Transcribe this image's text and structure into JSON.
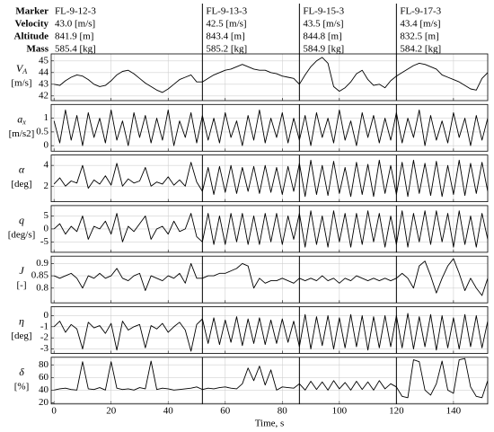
{
  "header": {
    "labels": [
      "Marker",
      "Velocity",
      "Altitude",
      "Mass"
    ],
    "segments": [
      {
        "marker": "FL-9-12-3",
        "velocity": "43.0 [m/s]",
        "altitude": "841.9 [m]",
        "mass": "585.4 [kg]"
      },
      {
        "marker": "FL-9-13-3",
        "velocity": "42.5 [m/s]",
        "altitude": "843.4 [m]",
        "mass": "585.2 [kg]"
      },
      {
        "marker": "FL-9-15-3",
        "velocity": "43.5 [m/s]",
        "altitude": "844.8 [m]",
        "mass": "584.9 [kg]"
      },
      {
        "marker": "FL-9-17-3",
        "velocity": "43.4 [m/s]",
        "altitude": "832.5 [m]",
        "mass": "584.2 [kg]"
      }
    ]
  },
  "chart_data": [
    {
      "type": "line",
      "symbol": "V",
      "subscript": "A",
      "unit": "[m/s]",
      "xlim": [
        -1,
        152
      ],
      "ylim": [
        41.6,
        45.6
      ],
      "yticks": [
        42,
        43,
        44,
        45
      ],
      "xticks": [
        0,
        20,
        40,
        60,
        80,
        100,
        120,
        140
      ],
      "vlines": [
        52,
        86,
        120
      ],
      "grid": true,
      "color": "#000000",
      "x": [
        0,
        2,
        4,
        6,
        8,
        10,
        12,
        14,
        16,
        18,
        20,
        22,
        24,
        26,
        28,
        30,
        32,
        34,
        36,
        38,
        40,
        42,
        44,
        46,
        48,
        50,
        52,
        54,
        56,
        58,
        60,
        62,
        64,
        66,
        68,
        70,
        72,
        74,
        76,
        78,
        80,
        82,
        84,
        86,
        88,
        90,
        92,
        94,
        96,
        98,
        100,
        102,
        104,
        106,
        108,
        110,
        112,
        114,
        116,
        118,
        120,
        122,
        124,
        126,
        128,
        130,
        132,
        134,
        136,
        138,
        140,
        142,
        144,
        146,
        148,
        150,
        152
      ],
      "values": [
        43.0,
        42.9,
        43.3,
        43.6,
        43.8,
        43.7,
        43.4,
        43.0,
        42.8,
        42.9,
        43.3,
        43.8,
        44.1,
        44.2,
        43.9,
        43.5,
        43.1,
        42.8,
        42.5,
        42.3,
        42.6,
        43.0,
        43.4,
        43.6,
        43.8,
        43.2,
        43.2,
        43.5,
        43.8,
        44.0,
        44.2,
        44.3,
        44.5,
        44.7,
        44.5,
        44.3,
        44.2,
        44.2,
        44.0,
        43.9,
        43.7,
        43.6,
        43.5,
        43.0,
        43.8,
        44.5,
        45.0,
        45.3,
        44.8,
        42.8,
        42.4,
        42.7,
        43.2,
        43.9,
        44.2,
        43.4,
        42.9,
        43.0,
        42.7,
        43.3,
        43.7,
        44.0,
        44.3,
        44.6,
        44.8,
        44.7,
        44.5,
        44.3,
        43.8,
        43.6,
        43.4,
        43.2,
        42.9,
        42.6,
        42.5,
        43.5,
        44.0
      ]
    },
    {
      "type": "line",
      "symbol": "a",
      "subscript": "x",
      "unit": "[m/s2]",
      "xlim": [
        -1,
        152
      ],
      "ylim": [
        -0.2,
        1.5
      ],
      "yticks": [
        0,
        0.5,
        1
      ],
      "xticks": [
        0,
        20,
        40,
        60,
        80,
        100,
        120,
        140
      ],
      "vlines": [
        52,
        86,
        120
      ],
      "grid": true,
      "color": "#000000",
      "x": [
        0,
        2,
        4,
        6,
        8,
        10,
        12,
        14,
        16,
        18,
        20,
        22,
        24,
        26,
        28,
        30,
        32,
        34,
        36,
        38,
        40,
        42,
        44,
        46,
        48,
        50,
        52,
        54,
        56,
        58,
        60,
        62,
        64,
        66,
        68,
        70,
        72,
        74,
        76,
        78,
        80,
        82,
        84,
        86,
        88,
        90,
        92,
        94,
        96,
        98,
        100,
        102,
        104,
        106,
        108,
        110,
        112,
        114,
        116,
        118,
        120,
        122,
        124,
        126,
        128,
        130,
        132,
        134,
        136,
        138,
        140,
        142,
        144,
        146,
        148,
        150,
        152
      ],
      "values": [
        0.9,
        0.1,
        1.3,
        0.2,
        1.1,
        0.0,
        1.2,
        0.3,
        1.0,
        0.1,
        1.3,
        0.2,
        0.9,
        0.0,
        1.2,
        0.3,
        1.1,
        0.1,
        1.0,
        0.2,
        1.3,
        0.0,
        0.9,
        0.3,
        1.2,
        0.1,
        1.1,
        0.2,
        1.0,
        0.1,
        1.2,
        0.3,
        0.9,
        0.0,
        1.1,
        0.2,
        1.3,
        0.1,
        1.0,
        0.3,
        1.2,
        0.1,
        1.0,
        0.2,
        1.1,
        0.0,
        1.2,
        0.3,
        1.0,
        0.1,
        1.3,
        0.2,
        0.9,
        0.0,
        1.2,
        0.3,
        1.1,
        0.1,
        1.0,
        0.2,
        1.2,
        0.1,
        1.0,
        0.3,
        1.3,
        0.0,
        1.1,
        0.2,
        0.9,
        0.1,
        1.2,
        0.3,
        1.0,
        0.0,
        1.1,
        0.2,
        1.0
      ]
    },
    {
      "type": "line",
      "symbol": "α",
      "unit": "[deg]",
      "xlim": [
        -1,
        152
      ],
      "ylim": [
        0.5,
        5
      ],
      "yticks": [
        2,
        4
      ],
      "xticks": [
        0,
        20,
        40,
        60,
        80,
        100,
        120,
        140
      ],
      "vlines": [
        52,
        86,
        120
      ],
      "grid": true,
      "color": "#000000",
      "x": [
        0,
        2,
        4,
        6,
        8,
        10,
        12,
        14,
        16,
        18,
        20,
        22,
        24,
        26,
        28,
        30,
        32,
        34,
        36,
        38,
        40,
        42,
        44,
        46,
        48,
        50,
        52,
        54,
        56,
        58,
        60,
        62,
        64,
        66,
        68,
        70,
        72,
        74,
        76,
        78,
        80,
        82,
        84,
        86,
        88,
        90,
        92,
        94,
        96,
        98,
        100,
        102,
        104,
        106,
        108,
        110,
        112,
        114,
        116,
        118,
        120,
        122,
        124,
        126,
        128,
        130,
        132,
        134,
        136,
        138,
        140,
        142,
        144,
        146,
        148,
        150,
        152
      ],
      "values": [
        2.2,
        2.8,
        2.0,
        2.5,
        2.3,
        4.0,
        1.8,
        2.6,
        2.2,
        3.0,
        2.1,
        4.2,
        2.0,
        2.7,
        2.3,
        2.5,
        3.8,
        2.0,
        2.4,
        2.2,
        2.9,
        2.1,
        2.6,
        2.0,
        4.3,
        2.4,
        1.5,
        3.8,
        1.2,
        3.9,
        1.4,
        4.0,
        1.3,
        3.8,
        1.5,
        3.9,
        1.3,
        4.0,
        1.4,
        3.8,
        1.2,
        3.9,
        1.5,
        4.2,
        1.0,
        4.5,
        1.2,
        4.0,
        1.1,
        4.4,
        1.3,
        3.8,
        1.0,
        4.3,
        1.2,
        4.1,
        1.0,
        4.5,
        1.3,
        4.0,
        1.2,
        4.3,
        1.0,
        4.5,
        1.3,
        4.2,
        1.1,
        4.4,
        1.0,
        4.0,
        1.2,
        4.5,
        1.1,
        4.2,
        1.3,
        4.3,
        1.5
      ]
    },
    {
      "type": "line",
      "symbol": "q",
      "unit": "[deg/s]",
      "xlim": [
        -1,
        152
      ],
      "ylim": [
        -9,
        9
      ],
      "yticks": [
        -5,
        0,
        5
      ],
      "xticks": [
        0,
        20,
        40,
        60,
        80,
        100,
        120,
        140
      ],
      "vlines": [
        52,
        86,
        120
      ],
      "grid": true,
      "color": "#000000",
      "x": [
        0,
        2,
        4,
        6,
        8,
        10,
        12,
        14,
        16,
        18,
        20,
        22,
        24,
        26,
        28,
        30,
        32,
        34,
        36,
        38,
        40,
        42,
        44,
        46,
        48,
        50,
        52,
        54,
        56,
        58,
        60,
        62,
        64,
        66,
        68,
        70,
        72,
        74,
        76,
        78,
        80,
        82,
        84,
        86,
        88,
        90,
        92,
        94,
        96,
        98,
        100,
        102,
        104,
        106,
        108,
        110,
        112,
        114,
        116,
        118,
        120,
        122,
        124,
        126,
        128,
        130,
        132,
        134,
        136,
        138,
        140,
        142,
        144,
        146,
        148,
        150,
        152
      ],
      "values": [
        0,
        2,
        -2,
        1,
        -1,
        5,
        -4,
        1,
        0,
        3,
        -2,
        6,
        -5,
        1,
        -1,
        2,
        5,
        -4,
        0,
        1,
        -2,
        3,
        -1,
        0,
        6,
        -3,
        -5,
        6,
        -6,
        5,
        -6,
        6,
        -5,
        6,
        -6,
        5,
        -6,
        6,
        -5,
        6,
        -6,
        5,
        -4,
        6,
        -7,
        7,
        -6,
        5,
        -7,
        7,
        -5,
        6,
        -7,
        6,
        -6,
        7,
        -5,
        6,
        -7,
        5,
        -6,
        7,
        -7,
        6,
        -5,
        7,
        -6,
        7,
        -5,
        6,
        -7,
        7,
        -6,
        5,
        -7,
        6,
        -4
      ]
    },
    {
      "type": "line",
      "symbol": "J",
      "unit": "[-]",
      "xlim": [
        -1,
        152
      ],
      "ylim": [
        0.74,
        0.93
      ],
      "yticks": [
        0.8,
        0.85,
        0.9
      ],
      "xticks": [
        0,
        20,
        40,
        60,
        80,
        100,
        120,
        140
      ],
      "vlines": [
        52,
        86,
        120
      ],
      "grid": true,
      "color": "#000000",
      "x": [
        0,
        2,
        4,
        6,
        8,
        10,
        12,
        14,
        16,
        18,
        20,
        22,
        24,
        26,
        28,
        30,
        32,
        34,
        36,
        38,
        40,
        42,
        44,
        46,
        48,
        50,
        52,
        54,
        56,
        58,
        60,
        62,
        64,
        66,
        68,
        70,
        72,
        74,
        76,
        78,
        80,
        82,
        84,
        86,
        88,
        90,
        92,
        94,
        96,
        98,
        100,
        102,
        104,
        106,
        108,
        110,
        112,
        114,
        116,
        118,
        120,
        122,
        124,
        126,
        128,
        130,
        132,
        134,
        136,
        138,
        140,
        142,
        144,
        146,
        148,
        150,
        152
      ],
      "values": [
        0.85,
        0.84,
        0.85,
        0.86,
        0.84,
        0.8,
        0.85,
        0.84,
        0.86,
        0.84,
        0.85,
        0.88,
        0.84,
        0.83,
        0.85,
        0.86,
        0.79,
        0.85,
        0.84,
        0.83,
        0.85,
        0.84,
        0.86,
        0.82,
        0.9,
        0.84,
        0.84,
        0.85,
        0.85,
        0.86,
        0.86,
        0.87,
        0.88,
        0.9,
        0.89,
        0.8,
        0.84,
        0.82,
        0.83,
        0.83,
        0.84,
        0.83,
        0.82,
        0.84,
        0.83,
        0.84,
        0.83,
        0.85,
        0.83,
        0.84,
        0.82,
        0.84,
        0.83,
        0.85,
        0.84,
        0.83,
        0.84,
        0.83,
        0.84,
        0.83,
        0.84,
        0.86,
        0.84,
        0.8,
        0.89,
        0.91,
        0.85,
        0.78,
        0.84,
        0.89,
        0.92,
        0.86,
        0.79,
        0.84,
        0.8,
        0.77,
        0.84
      ]
    },
    {
      "type": "line",
      "symbol": "η",
      "unit": "[deg]",
      "xlim": [
        -1,
        152
      ],
      "ylim": [
        -3.4,
        0.8
      ],
      "yticks": [
        -3,
        -2,
        -1,
        0
      ],
      "xticks": [
        0,
        20,
        40,
        60,
        80,
        100,
        120,
        140
      ],
      "vlines": [
        52,
        86,
        120
      ],
      "grid": true,
      "color": "#000000",
      "x": [
        0,
        2,
        4,
        6,
        8,
        10,
        12,
        14,
        16,
        18,
        20,
        22,
        24,
        26,
        28,
        30,
        32,
        34,
        36,
        38,
        40,
        42,
        44,
        46,
        48,
        50,
        52,
        54,
        56,
        58,
        60,
        62,
        64,
        66,
        68,
        70,
        72,
        74,
        76,
        78,
        80,
        82,
        84,
        86,
        88,
        90,
        92,
        94,
        96,
        98,
        100,
        102,
        104,
        106,
        108,
        110,
        112,
        114,
        116,
        118,
        120,
        122,
        124,
        126,
        128,
        130,
        132,
        134,
        136,
        138,
        140,
        142,
        144,
        146,
        148,
        150,
        152
      ],
      "values": [
        -1.0,
        -0.5,
        -1.5,
        -0.8,
        -1.2,
        -3.0,
        -0.6,
        -1.1,
        -0.9,
        -1.6,
        -0.7,
        -3.1,
        -0.5,
        -1.3,
        -1.0,
        -0.8,
        -2.9,
        -0.9,
        -1.2,
        -0.7,
        -1.5,
        -1.0,
        -0.6,
        -1.3,
        -3.2,
        -0.8,
        -0.3,
        -2.5,
        -0.2,
        -2.6,
        -0.4,
        -2.4,
        -0.1,
        -2.7,
        -0.3,
        -2.5,
        -0.2,
        -2.6,
        -0.4,
        -2.5,
        -0.3,
        -2.4,
        -0.5,
        -2.8,
        0.1,
        -3.0,
        -0.1,
        -2.7,
        0.0,
        -3.0,
        -0.2,
        -2.9,
        0.1,
        -2.8,
        0.0,
        -3.1,
        -0.1,
        -2.9,
        0.0,
        -2.8,
        0.0,
        -2.9,
        0.2,
        -3.0,
        -0.1,
        -2.8,
        0.1,
        -3.1,
        0.0,
        -2.9,
        -0.2,
        -3.0,
        0.1,
        -2.8,
        0.0,
        -2.9,
        -0.5
      ]
    },
    {
      "type": "line",
      "symbol": "δ",
      "unit": "[%]",
      "xlim": [
        -1,
        152
      ],
      "ylim": [
        18,
        92
      ],
      "yticks": [
        20,
        40,
        60,
        80
      ],
      "xticks": [
        0,
        20,
        40,
        60,
        80,
        100,
        120,
        140
      ],
      "xlabel": "Time, s",
      "vlines": [
        52,
        86,
        120
      ],
      "grid": true,
      "color": "#000000",
      "x": [
        0,
        2,
        4,
        6,
        8,
        10,
        12,
        14,
        16,
        18,
        20,
        22,
        24,
        26,
        28,
        30,
        32,
        34,
        36,
        38,
        40,
        42,
        44,
        46,
        48,
        50,
        52,
        54,
        56,
        58,
        60,
        62,
        64,
        66,
        68,
        70,
        72,
        74,
        76,
        78,
        80,
        82,
        84,
        86,
        88,
        90,
        92,
        94,
        96,
        98,
        100,
        102,
        104,
        106,
        108,
        110,
        112,
        114,
        116,
        118,
        120,
        122,
        124,
        126,
        128,
        130,
        132,
        134,
        136,
        138,
        140,
        142,
        144,
        146,
        148,
        150,
        152
      ],
      "values": [
        40,
        42,
        43,
        41,
        40,
        85,
        42,
        41,
        44,
        40,
        85,
        43,
        41,
        42,
        40,
        44,
        42,
        86,
        41,
        43,
        42,
        40,
        41,
        42,
        43,
        45,
        41,
        43,
        42,
        44,
        45,
        43,
        42,
        50,
        75,
        55,
        78,
        48,
        72,
        40,
        45,
        44,
        43,
        50,
        40,
        54,
        41,
        53,
        40,
        55,
        42,
        52,
        40,
        54,
        41,
        53,
        40,
        55,
        42,
        50,
        45,
        30,
        28,
        88,
        85,
        40,
        32,
        50,
        86,
        40,
        35,
        88,
        90,
        45,
        30,
        28,
        55
      ]
    }
  ]
}
